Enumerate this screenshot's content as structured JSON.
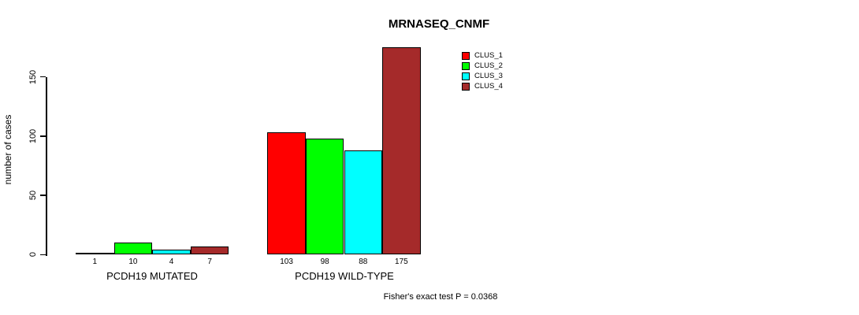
{
  "title": "MRNASEQ_CNMF",
  "ylabel": "number of cases",
  "annotation": "Fisher's exact test P = 0.0368",
  "legend": [
    {
      "label": "CLUS_1",
      "color": "#FF0000"
    },
    {
      "label": "CLUS_2",
      "color": "#00FF00"
    },
    {
      "label": "CLUS_3",
      "color": "#00FFFF"
    },
    {
      "label": "CLUS_4",
      "color": "#A52A2A"
    }
  ],
  "chart_data": {
    "type": "bar",
    "title": "MRNASEQ_CNMF",
    "ylabel": "number of cases",
    "xlabel": "",
    "ylim": [
      0,
      175
    ],
    "yticks": [
      0,
      50,
      100,
      150
    ],
    "grid": false,
    "legend_position": "top-right",
    "categories": [
      "PCDH19 MUTATED",
      "PCDH19 WILD-TYPE"
    ],
    "series": [
      {
        "name": "CLUS_1",
        "color": "#FF0000",
        "values": [
          1,
          103
        ]
      },
      {
        "name": "CLUS_2",
        "color": "#00FF00",
        "values": [
          10,
          98
        ]
      },
      {
        "name": "CLUS_3",
        "color": "#00FFFF",
        "values": [
          4,
          88
        ]
      },
      {
        "name": "CLUS_4",
        "color": "#A52A2A",
        "values": [
          7,
          175
        ]
      }
    ],
    "bar_value_labels": [
      [
        "1",
        "10",
        "4",
        "7"
      ],
      [
        "103",
        "98",
        "88",
        "175"
      ]
    ],
    "annotation": "Fisher's exact test P = 0.0368"
  }
}
